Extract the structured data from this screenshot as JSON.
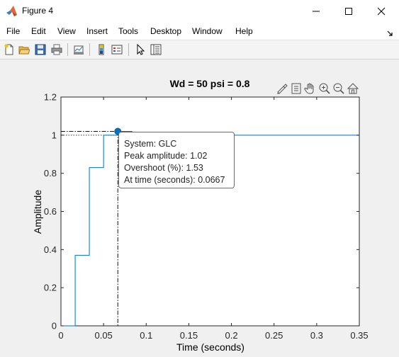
{
  "window": {
    "title": "Figure 4"
  },
  "menu": {
    "items": [
      "File",
      "Edit",
      "View",
      "Insert",
      "Tools",
      "Desktop",
      "Window",
      "Help"
    ]
  },
  "toolbar": {
    "icons": [
      "new-figure-icon",
      "open-file-icon",
      "save-icon",
      "print-icon",
      "link-plot-icon",
      "colorbar-icon",
      "legend-icon",
      "pointer-icon",
      "property-inspector-icon"
    ]
  },
  "axes_toolbar": {
    "icons": [
      "brush-icon",
      "datatip-icon",
      "pan-icon",
      "zoom-in-icon",
      "zoom-out-icon",
      "home-icon"
    ]
  },
  "chart_data": {
    "type": "line",
    "step": true,
    "title": "Wd = 50 psi = 0.8",
    "xlabel": "Time (seconds)",
    "ylabel": "Amplitude",
    "xlim": [
      0,
      0.35
    ],
    "ylim": [
      0,
      1.2
    ],
    "xticks": [
      0,
      0.05,
      0.1,
      0.15,
      0.2,
      0.25,
      0.3,
      0.35
    ],
    "xtick_labels": [
      "0",
      "0.05",
      "0.1",
      "0.15",
      "0.2",
      "0.25",
      "0.3",
      "0.35"
    ],
    "yticks": [
      0,
      0.2,
      0.4,
      0.6,
      0.8,
      1,
      1.2
    ],
    "ytick_labels": [
      "0",
      "0.2",
      "0.4",
      "0.6",
      "0.8",
      "1",
      "1.2"
    ],
    "grid": false,
    "series": [
      {
        "name": "GLC",
        "color": "#0072bd",
        "x": [
          0,
          0.0167,
          0.0333,
          0.05,
          0.0667,
          0.0833,
          0.1,
          0.35
        ],
        "y": [
          0,
          0.37,
          0.83,
          1.0,
          1.02,
          1.0,
          1.0,
          1.0
        ]
      }
    ],
    "reference": {
      "final_value": 1.0
    },
    "datatip": {
      "x": 0.0667,
      "y": 1.02,
      "lines": [
        "System: GLC",
        "Peak amplitude: 1.02",
        "Overshoot (%): 1.53",
        "At time (seconds): 0.0667"
      ]
    }
  }
}
